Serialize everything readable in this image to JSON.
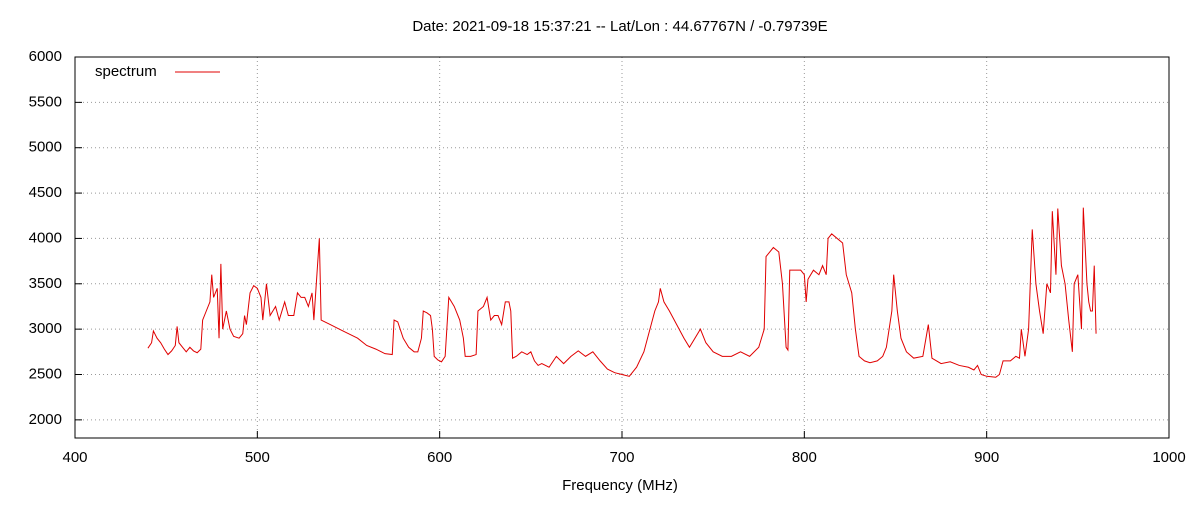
{
  "chart_data": {
    "type": "line",
    "title": "Date: 2021-09-18 15:37:21  --  Lat/Lon : 44.67767N / -0.79739E",
    "x_label": "Frequency (MHz)",
    "xlim": [
      400,
      1000
    ],
    "xticks": [
      400,
      500,
      600,
      700,
      800,
      900,
      1000
    ],
    "ylim": [
      1800,
      6000
    ],
    "yticks": [
      2000,
      2500,
      3000,
      3500,
      4000,
      4500,
      5000,
      5500,
      6000
    ],
    "grid": true,
    "legend": "top-left",
    "x": [
      440,
      442,
      443,
      445,
      447,
      449,
      451,
      453,
      455,
      456,
      457,
      459,
      461,
      463,
      465,
      467,
      469,
      470,
      472,
      474,
      475,
      476,
      478,
      479,
      480,
      481,
      483,
      485,
      487,
      490,
      492,
      493,
      494,
      496,
      498,
      500,
      502,
      503,
      505,
      507,
      510,
      512,
      515,
      517,
      520,
      522,
      524,
      526,
      528,
      530,
      531,
      534,
      535,
      540,
      545,
      550,
      555,
      560,
      565,
      568,
      570,
      574,
      575,
      577,
      580,
      583,
      586,
      588,
      590,
      591,
      593,
      595,
      596,
      597,
      599,
      601,
      603,
      605,
      608,
      611,
      613,
      614,
      617,
      620,
      621,
      624,
      626,
      628,
      630,
      632,
      634,
      636,
      638,
      639,
      640,
      642,
      645,
      648,
      650,
      652,
      654,
      656,
      660,
      664,
      668,
      672,
      676,
      680,
      684,
      688,
      692,
      696,
      700,
      704,
      708,
      712,
      716,
      718,
      720,
      721,
      723,
      726,
      730,
      734,
      737,
      740,
      743,
      746,
      750,
      755,
      760,
      765,
      770,
      775,
      778,
      779,
      781,
      783,
      786,
      788,
      790,
      791,
      792,
      795,
      798,
      800,
      801,
      802,
      805,
      808,
      810,
      812,
      813,
      815,
      818,
      821,
      823,
      826,
      828,
      830,
      833,
      836,
      840,
      843,
      845,
      848,
      849,
      851,
      853,
      856,
      860,
      865,
      868,
      870,
      875,
      880,
      885,
      890,
      893,
      895,
      897,
      900,
      905,
      907,
      909,
      913,
      916,
      918,
      919,
      921,
      923,
      925,
      927,
      929,
      931,
      933,
      935,
      936,
      938,
      939,
      941,
      943,
      945,
      947,
      948,
      950,
      952,
      953,
      955,
      956,
      957,
      958,
      959,
      960
    ],
    "series": [
      {
        "name": "spectrum",
        "color": "#e00000",
        "values": [
          2790,
          2850,
          2980,
          2900,
          2850,
          2780,
          2720,
          2760,
          2820,
          3030,
          2850,
          2800,
          2750,
          2800,
          2760,
          2740,
          2780,
          3100,
          3200,
          3300,
          3600,
          3350,
          3450,
          2900,
          3720,
          3000,
          3200,
          3000,
          2920,
          2900,
          2950,
          3150,
          3050,
          3400,
          3480,
          3450,
          3350,
          3100,
          3500,
          3150,
          3250,
          3100,
          3300,
          3150,
          3150,
          3400,
          3350,
          3350,
          3250,
          3400,
          3100,
          4000,
          3100,
          3050,
          3000,
          2950,
          2900,
          2820,
          2780,
          2750,
          2730,
          2720,
          3100,
          3080,
          2900,
          2800,
          2750,
          2750,
          2900,
          3200,
          3180,
          3150,
          3000,
          2700,
          2660,
          2640,
          2700,
          3350,
          3250,
          3100,
          2900,
          2700,
          2700,
          2720,
          3200,
          3250,
          3350,
          3100,
          3150,
          3150,
          3050,
          3300,
          3300,
          3200,
          2680,
          2700,
          2750,
          2720,
          2750,
          2650,
          2600,
          2620,
          2580,
          2700,
          2620,
          2700,
          2760,
          2700,
          2750,
          2650,
          2560,
          2520,
          2500,
          2480,
          2580,
          2750,
          3050,
          3200,
          3300,
          3450,
          3300,
          3200,
          3050,
          2900,
          2800,
          2900,
          3000,
          2850,
          2750,
          2700,
          2700,
          2750,
          2700,
          2800,
          3000,
          3800,
          3850,
          3900,
          3850,
          3500,
          2800,
          2770,
          3650,
          3650,
          3650,
          3600,
          3300,
          3550,
          3650,
          3600,
          3700,
          3600,
          4000,
          4050,
          4000,
          3950,
          3600,
          3400,
          3000,
          2700,
          2650,
          2630,
          2650,
          2700,
          2800,
          3200,
          3600,
          3200,
          2900,
          2750,
          2680,
          2700,
          3050,
          2680,
          2620,
          2640,
          2600,
          2580,
          2550,
          2600,
          2500,
          2480,
          2470,
          2500,
          2650,
          2650,
          2700,
          2680,
          3000,
          2700,
          3000,
          4100,
          3500,
          3200,
          2950,
          3500,
          3400,
          4300,
          3600,
          4330,
          3700,
          3500,
          3100,
          2750,
          3500,
          3600,
          3000,
          4340,
          3500,
          3300,
          3200,
          3200,
          3700,
          2950
        ]
      }
    ]
  }
}
